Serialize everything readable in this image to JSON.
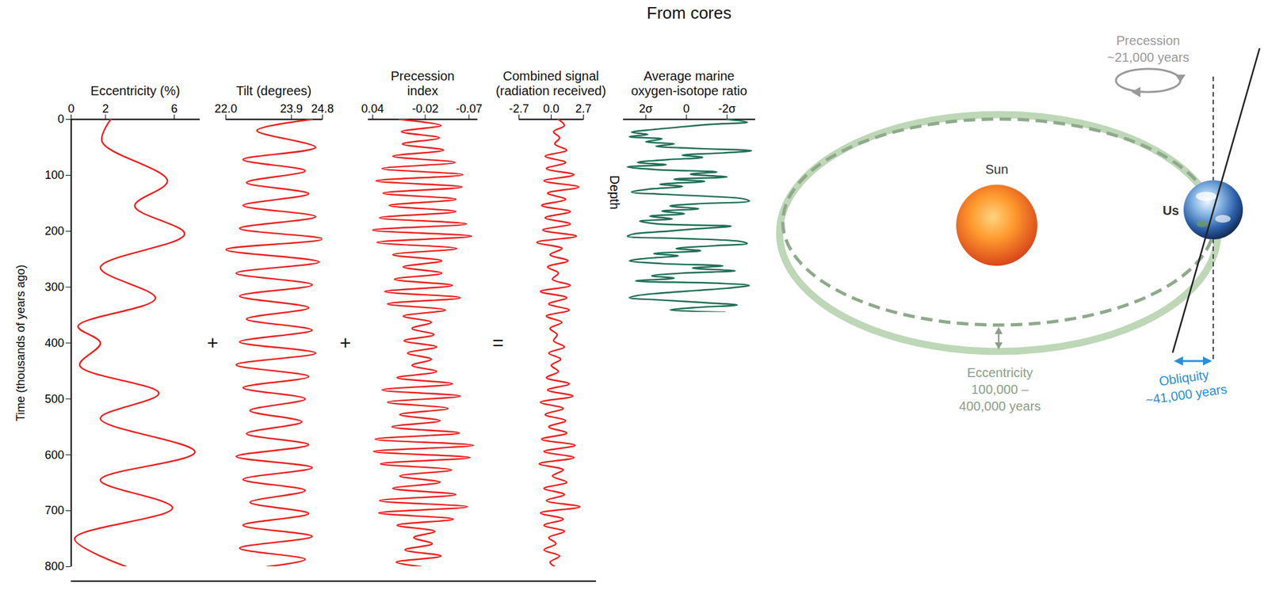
{
  "chart_data": [
    {
      "type": "line",
      "xlabel": "Eccentricity (%)",
      "ylabel": "Time (thousands of years ago)",
      "color": "#f01e1e",
      "xlim": [
        0,
        7.5
      ],
      "xticks": [
        0,
        2,
        6
      ],
      "ylim": [
        0,
        800
      ],
      "yticks": [
        0,
        100,
        200,
        300,
        400,
        500,
        600,
        700,
        800
      ],
      "y": [
        0,
        40,
        110,
        155,
        205,
        265,
        320,
        370,
        400,
        440,
        490,
        535,
        595,
        645,
        695,
        750,
        800
      ],
      "x": [
        2.3,
        1.8,
        5.6,
        3.7,
        6.6,
        1.7,
        4.9,
        0.4,
        1.7,
        0.5,
        5.1,
        1.7,
        7.2,
        1.7,
        5.9,
        0.2,
        3.2
      ]
    },
    {
      "type": "line",
      "xlabel": "Tilt (degrees)",
      "color": "#f01e1e",
      "tick_labels": "x",
      "xlim": [
        22.0,
        24.8
      ],
      "xticks": [
        {
          "value": 22,
          "label": "22.0"
        },
        23.9,
        24.8
      ],
      "ylim": [
        0,
        800
      ],
      "y": [
        0,
        20,
        50,
        72,
        92,
        113,
        133,
        154,
        174,
        195,
        214,
        233,
        255,
        275,
        296,
        316,
        337,
        357,
        377,
        398,
        418,
        439,
        460,
        480,
        500,
        521,
        541,
        562,
        582,
        603,
        623,
        644,
        664,
        685,
        705,
        726,
        746,
        767,
        787,
        800
      ],
      "x": [
        24.5,
        22.9,
        24.6,
        22.5,
        24.3,
        22.6,
        24.4,
        22.5,
        24.6,
        22.4,
        24.8,
        22.0,
        24.7,
        22.3,
        24.5,
        22.4,
        24.4,
        22.6,
        24.5,
        22.4,
        24.6,
        22.3,
        24.4,
        22.5,
        24.3,
        22.7,
        24.2,
        22.6,
        24.4,
        22.3,
        24.5,
        22.5,
        24.3,
        22.7,
        24.4,
        22.5,
        24.5,
        22.4,
        24.3,
        23.2
      ]
    },
    {
      "type": "line",
      "xlabel": "Precession index",
      "color": "#f01e1e",
      "tick_labels": "x",
      "xlim": [
        0.045,
        -0.08
      ],
      "xticks": [
        0.04,
        -0.02,
        -0.07
      ],
      "ylim": [
        0,
        800
      ],
      "y": [
        0,
        11,
        22,
        33,
        44,
        55,
        66,
        77,
        88,
        99,
        110,
        121,
        132,
        143,
        154,
        165,
        176,
        187,
        198,
        209,
        220,
        231,
        242,
        253,
        264,
        275,
        286,
        297,
        308,
        319,
        330,
        341,
        352,
        363,
        374,
        385,
        396,
        407,
        418,
        429,
        440,
        451,
        462,
        473,
        484,
        495,
        506,
        517,
        528,
        539,
        550,
        561,
        572,
        583,
        594,
        605,
        616,
        627,
        638,
        649,
        660,
        671,
        682,
        693,
        704,
        715,
        726,
        737,
        748,
        759,
        770,
        781,
        792,
        800
      ],
      "x": [
        0.009,
        -0.038,
        0.007,
        -0.036,
        0.006,
        -0.041,
        0.017,
        -0.054,
        0.029,
        -0.063,
        0.036,
        -0.062,
        0.028,
        -0.055,
        0.021,
        -0.055,
        0.032,
        -0.067,
        0.04,
        -0.073,
        0.035,
        -0.056,
        0.017,
        -0.039,
        0.005,
        -0.039,
        0.015,
        -0.051,
        0.026,
        -0.06,
        0.023,
        -0.043,
        0.005,
        -0.027,
        -0.005,
        -0.03,
        0.004,
        -0.033,
        0,
        -0.027,
        -0.005,
        -0.033,
        0.012,
        -0.051,
        0.029,
        -0.06,
        0.023,
        -0.046,
        0.009,
        -0.037,
        0.018,
        -0.059,
        0.037,
        -0.075,
        0.039,
        -0.071,
        0.031,
        -0.05,
        0.009,
        -0.037,
        0.017,
        -0.055,
        0.032,
        -0.068,
        0.033,
        -0.052,
        0.012,
        -0.031,
        -0.007,
        -0.028,
        0.003,
        -0.038,
        0.013,
        -0.015
      ]
    },
    {
      "type": "line",
      "xlabel": "Combined signal (radiation received)",
      "color": "#f01e1e",
      "tick_labels": "x",
      "xlim": [
        -2.7,
        2.7
      ],
      "xticks": [
        -2.7,
        {
          "value": 0,
          "label": "0.0"
        },
        2.7
      ],
      "ylim": [
        0,
        800
      ],
      "y": [
        0,
        11,
        22,
        33,
        44,
        55,
        66,
        77,
        88,
        99,
        110,
        121,
        132,
        143,
        154,
        165,
        176,
        187,
        198,
        209,
        220,
        231,
        242,
        253,
        264,
        275,
        286,
        297,
        308,
        319,
        330,
        341,
        352,
        363,
        374,
        385,
        396,
        407,
        418,
        429,
        440,
        451,
        462,
        473,
        484,
        495,
        506,
        517,
        528,
        539,
        550,
        561,
        572,
        583,
        594,
        605,
        616,
        627,
        638,
        649,
        660,
        671,
        682,
        693,
        704,
        715,
        726,
        737,
        748,
        759,
        770,
        781,
        792,
        800
      ],
      "x": [
        0.6,
        1.1,
        0.2,
        0.7,
        0.3,
        1.3,
        -0.5,
        1.2,
        -0.4,
        1.9,
        -0.6,
        2.3,
        -0.3,
        1.2,
        -0.8,
        1.6,
        -0.5,
        1.6,
        -0.7,
        2.1,
        -1.2,
        0.9,
        -0.1,
        1.4,
        -0.3,
        0.6,
        0.1,
        1.6,
        -0.9,
        1.3,
        -0.2,
        1.5,
        -0.4,
        0.9,
        -0.1,
        0.5,
        0.2,
        1.1,
        -0.2,
        0.8,
        0.0,
        0.6,
        -0.4,
        1.5,
        -0.3,
        1.8,
        -0.9,
        1.0,
        -0.5,
        1.2,
        -0.2,
        1.3,
        -0.8,
        2.0,
        -0.6,
        1.9,
        -1.0,
        1.0,
        0.1,
        1.3,
        -0.6,
        1.1,
        -0.4,
        2.4,
        -0.9,
        1.0,
        -0.6,
        1.1,
        -0.2,
        0.4,
        -0.6,
        0.7,
        -0.1,
        0.3
      ]
    },
    {
      "type": "line",
      "title": "From cores",
      "xlabel": "Average marine oxygen-isotope ratio",
      "ylabel": "Depth",
      "color": "#1f6e55",
      "tick_labels": "x",
      "xlim": [
        3.1,
        -3.4
      ],
      "xticks": [
        {
          "value": 2,
          "label": "2σ"
        },
        0,
        {
          "value": -2,
          "label": "-2σ"
        }
      ],
      "ylim": [
        0,
        345
      ],
      "y": [
        0,
        5,
        9,
        14,
        18,
        23,
        27,
        31,
        35,
        40,
        44,
        48,
        52,
        56,
        60,
        64,
        68,
        72,
        77,
        81,
        85,
        90,
        94,
        98,
        103,
        107,
        111,
        116,
        120,
        125,
        130,
        134,
        138,
        142,
        146,
        151,
        155,
        160,
        164,
        169,
        173,
        178,
        182,
        187,
        191,
        196,
        200,
        205,
        209,
        213,
        218,
        222,
        226,
        231,
        235,
        240,
        244,
        249,
        253,
        258,
        262,
        266,
        271,
        275,
        280,
        284,
        289,
        293,
        297,
        302,
        306,
        310,
        315,
        319,
        323,
        328,
        332,
        336,
        341,
        345
      ],
      "x": [
        -2.0,
        -3.0,
        -1.2,
        0.4,
        1.6,
        2.7,
        1.9,
        2.8,
        1.2,
        2.0,
        0.6,
        1.5,
        -0.5,
        -3.2,
        -1.8,
        0.2,
        -0.8,
        0.9,
        2.4,
        1.0,
        2.9,
        1.4,
        -1.5,
        -0.2,
        -2.0,
        0.6,
        -0.9,
        1.3,
        0.2,
        1.9,
        2.7,
        1.1,
        -1.3,
        -2.8,
        -3.1,
        -0.5,
        0.8,
        -0.6,
        1.2,
        0.1,
        1.8,
        0.7,
        2.3,
        1.4,
        -2.2,
        -0.4,
        0.9,
        2.6,
        2.9,
        0.3,
        -2.6,
        -3.0,
        -1.4,
        0.5,
        -0.7,
        1.6,
        0.4,
        2.1,
        2.8,
        1.2,
        -1.8,
        -0.3,
        -2.4,
        0.2,
        1.7,
        0.6,
        2.5,
        -1.5,
        -3.1,
        -2.0,
        -0.5,
        1.0,
        2.4,
        2.8,
        1.3,
        -1.0,
        -2.5,
        -0.7,
        0.8,
        -1.9
      ]
    }
  ],
  "operators": [
    "+",
    "+",
    "="
  ],
  "diagram": {
    "sun": "Sun",
    "earth": "Us",
    "precession": {
      "label": "Precession",
      "period": "~21,000 years"
    },
    "eccentricity": {
      "label": "Eccentricity",
      "period": "100,000 – 400,000 years"
    },
    "obliquity": {
      "label": "Obliquity",
      "period": "~41,000 years"
    }
  }
}
